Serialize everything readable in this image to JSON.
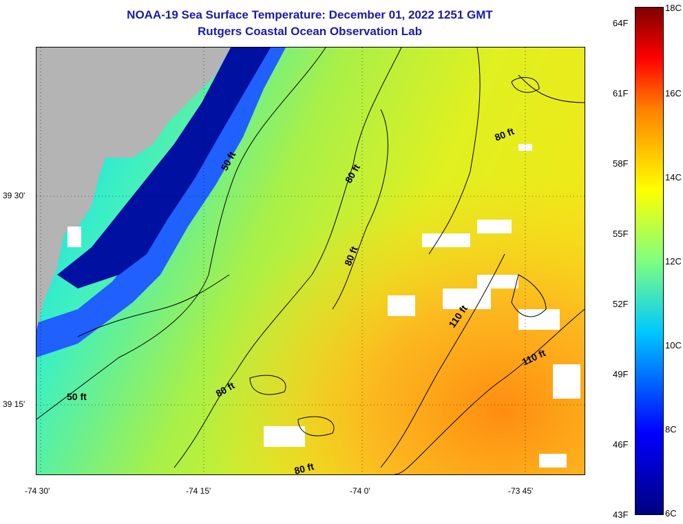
{
  "title": {
    "line1": "NOAA-19 Sea Surface Temperature:  December 01, 2022 1251 GMT",
    "line2": "Rutgers Coastal Ocean Observation Lab"
  },
  "axes": {
    "x_ticks": [
      "-74 30'",
      "-74 15'",
      "-74 0'",
      "-73 45'"
    ],
    "y_ticks": [
      "39 30'",
      "39 15'"
    ]
  },
  "contours": {
    "labels": [
      "50 ft",
      "50 ft",
      "80 ft",
      "80 ft",
      "80 ft",
      "80 ft",
      "80 ft",
      "110 ft",
      "110 ft"
    ]
  },
  "colorbar": {
    "fahrenheit": [
      "64F",
      "61F",
      "58F",
      "55F",
      "52F",
      "49F",
      "46F",
      "43F"
    ],
    "celsius": [
      "18C",
      "16C",
      "14C",
      "12C",
      "10C",
      "8C",
      "6C"
    ],
    "range_c": [
      6,
      18
    ],
    "range_f": [
      43,
      64
    ]
  },
  "colors": {
    "title": "#1a1aa8",
    "land": "#b4b4b4",
    "cloud": "#ffffff",
    "contour": "#000000"
  }
}
